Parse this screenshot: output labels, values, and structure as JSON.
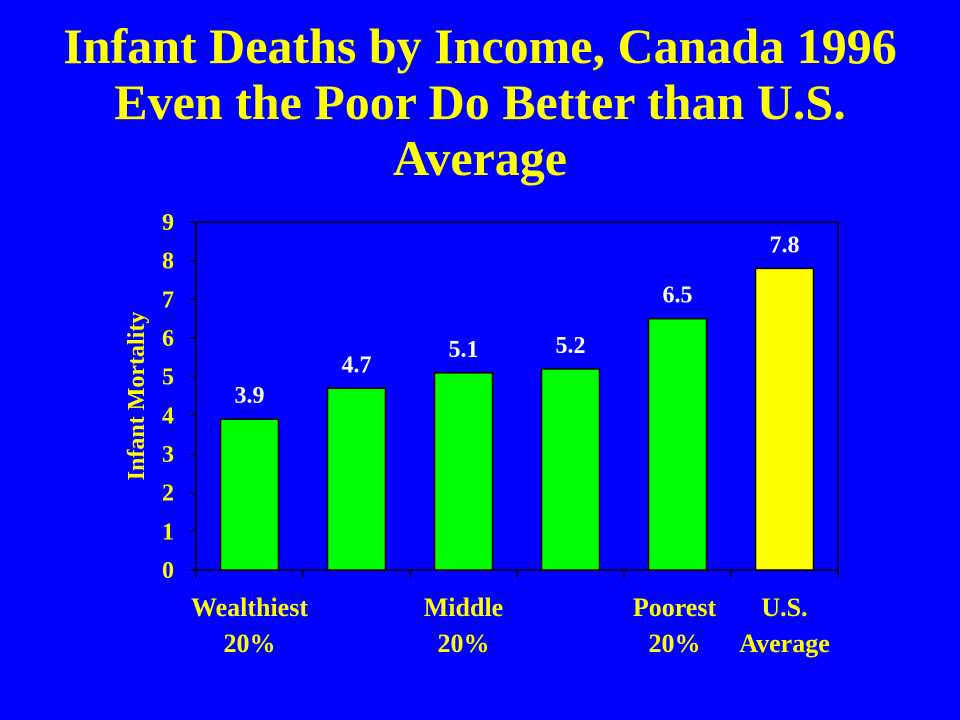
{
  "slide": {
    "title_lines": [
      "Infant Deaths by Income, Canada 1996",
      "Even the Poor Do Better than U.S.",
      "Average"
    ]
  },
  "colors": {
    "background": "#0000FF",
    "title": "#FFFF00",
    "plot_background": "#0000FF",
    "canada_bar": "#00FF00",
    "us_bar": "#FFFF00",
    "axis_text": "#FFFF00",
    "data_labels": "#FFFFFF",
    "axis_line": "#000000"
  },
  "chart_data": {
    "type": "bar",
    "title": "Infant Deaths by Income, Canada 1996 Even the Poor Do Better than U.S. Average",
    "xlabel": "",
    "ylabel": "Infant Mortality",
    "ylim": [
      0,
      9
    ],
    "yticks": [
      0,
      1,
      2,
      3,
      4,
      5,
      6,
      7,
      8,
      9
    ],
    "grid": false,
    "legend": "none",
    "categories": [
      "",
      "",
      "",
      "",
      "",
      ""
    ],
    "category_labels": [
      {
        "lines": [
          "Wealthiest",
          "20%"
        ],
        "align_bar": 0
      },
      {
        "lines": [
          "Middle",
          "20%"
        ],
        "align_bar": 2
      },
      {
        "lines": [
          "Poorest",
          "20%"
        ],
        "align_bar": 4
      },
      {
        "lines": [
          "U.S.",
          "Average"
        ],
        "align_bar": 5
      }
    ],
    "values": [
      3.9,
      4.7,
      5.1,
      5.2,
      6.5,
      7.8
    ],
    "data_labels": [
      "3.9",
      "4.7",
      "5.1",
      "5.2",
      "6.5",
      "7.8"
    ],
    "bar_colors": [
      "canada",
      "canada",
      "canada",
      "canada",
      "canada",
      "us"
    ]
  }
}
